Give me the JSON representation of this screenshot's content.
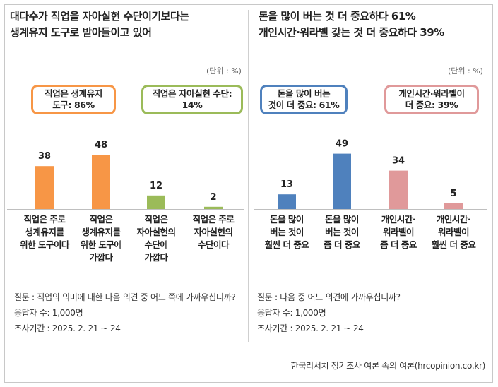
{
  "colors": {
    "orange": "#f79646",
    "green": "#9bbb59",
    "blue": "#4f81bd",
    "pink": "#e0999a"
  },
  "left": {
    "title_line1": "대다수가 직업을 자아실현 수단이기보다는",
    "title_line2": "생계유지 도구로 받아들이고 있어",
    "unit": "(단위 : %)",
    "callout1_line1": "직업은 생계유지",
    "callout1_line2": "도구: 86%",
    "callout2_line1": "직업은 자아실현 수단:",
    "callout2_line2": "14%",
    "question": "질문 : 직업의 의미에 대한 다음 의견 중 어느 쪽에 가까우십니까?",
    "respondents": "응답자 수: 1,000명",
    "period": "조사기간 : 2025. 2. 21 ~ 24"
  },
  "right": {
    "title_line1": "돈을 많이 버는 것 더 중요하다 61%",
    "title_line2": "개인시간·워라벨 갖는 것 더 중요하다 39%",
    "unit": "(단위 : %)",
    "callout1_line1": "돈을 많이 버는",
    "callout1_line2": "것이 더 중요: 61%",
    "callout2_line1": "개인시간·워라벨이",
    "callout2_line2": "더 중요: 39%",
    "question": "질문 : 다음 중 어느 의견에 가까우십니까?",
    "respondents": "응답자 수: 1,000명",
    "period": "조사기간 : 2025. 2. 21 ~ 24"
  },
  "source": "한국리서치 정기조사 여론 속의 여론(hrcopinion.co.kr)",
  "chart_data": [
    {
      "type": "bar",
      "categories": [
        [
          "직업은 주로",
          "생계유지를",
          "위한 도구이다"
        ],
        [
          "직업은",
          "생계유지를",
          "위한 도구에",
          "가깝다"
        ],
        [
          "직업은",
          "자아실현의",
          "수단에",
          "가깝다"
        ],
        [
          "직업은 주로",
          "자아실현의",
          "수단이다"
        ]
      ],
      "values": [
        38,
        48,
        12,
        2
      ],
      "bar_colors": [
        "#f79646",
        "#f79646",
        "#9bbb59",
        "#9bbb59"
      ],
      "unit": "(단위 : %)",
      "ylim": [
        0,
        60
      ],
      "grid": false
    },
    {
      "type": "bar",
      "categories": [
        [
          "돈을 많이",
          "버는 것이",
          "훨씬 더 중요"
        ],
        [
          "돈을 많이",
          "버는 것이",
          "좀 더 중요"
        ],
        [
          "개인시간·",
          "워라벨이",
          "좀 더 중요"
        ],
        [
          "개인시간·",
          "워라벨이",
          "훨씬 더 중요"
        ]
      ],
      "values": [
        13,
        49,
        34,
        5
      ],
      "bar_colors": [
        "#4f81bd",
        "#4f81bd",
        "#e0999a",
        "#e0999a"
      ],
      "unit": "(단위 : %)",
      "ylim": [
        0,
        60
      ],
      "grid": false
    }
  ]
}
